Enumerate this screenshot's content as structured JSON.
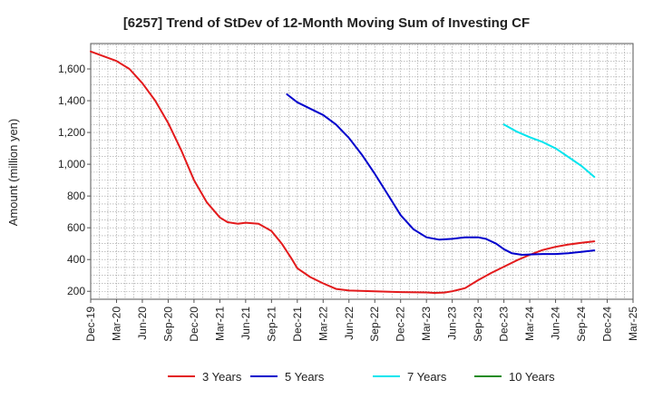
{
  "chart_data": {
    "type": "line",
    "title": "[6257]  Trend of StDev of 12-Month Moving Sum of Investing CF",
    "ylabel": "Amount (million yen)",
    "xlabel": "",
    "x_categories": [
      "Dec-19",
      "Mar-20",
      "Jun-20",
      "Sep-20",
      "Dec-20",
      "Mar-21",
      "Jun-21",
      "Sep-21",
      "Dec-21",
      "Mar-22",
      "Jun-22",
      "Sep-22",
      "Dec-22",
      "Mar-23",
      "Jun-23",
      "Sep-23",
      "Dec-23",
      "Mar-24",
      "Jun-24",
      "Sep-24",
      "Dec-24",
      "Mar-25"
    ],
    "yticks": [
      200,
      400,
      600,
      800,
      1000,
      1200,
      1400,
      1600
    ],
    "ytick_labels": [
      "200",
      "400",
      "600",
      "800",
      "1,000",
      "1,200",
      "1,400",
      "1,600"
    ],
    "ylim": [
      150,
      1760
    ],
    "grid": true,
    "legend_position": "bottom",
    "series": [
      {
        "name": "3 Years",
        "color": "#e31a1c",
        "values": [
          [
            0,
            1710
          ],
          [
            1,
            1650
          ],
          [
            1.5,
            1600
          ],
          [
            2,
            1510
          ],
          [
            2.5,
            1400
          ],
          [
            3,
            1260
          ],
          [
            3.5,
            1090
          ],
          [
            4,
            900
          ],
          [
            4.5,
            760
          ],
          [
            5,
            665
          ],
          [
            5.3,
            635
          ],
          [
            5.7,
            625
          ],
          [
            6,
            632
          ],
          [
            6.5,
            625
          ],
          [
            7,
            580
          ],
          [
            7.4,
            500
          ],
          [
            7.8,
            400
          ],
          [
            8,
            345
          ],
          [
            8.5,
            290
          ],
          [
            9,
            250
          ],
          [
            9.5,
            215
          ],
          [
            10,
            205
          ],
          [
            11,
            200
          ],
          [
            12,
            195
          ],
          [
            13,
            193
          ],
          [
            13.3,
            190
          ],
          [
            13.7,
            192
          ],
          [
            14,
            200
          ],
          [
            14.5,
            220
          ],
          [
            15,
            270
          ],
          [
            15.5,
            315
          ],
          [
            16,
            355
          ],
          [
            16.5,
            395
          ],
          [
            17,
            430
          ],
          [
            17.5,
            460
          ],
          [
            18,
            480
          ],
          [
            18.5,
            495
          ],
          [
            19,
            505
          ],
          [
            19.5,
            515
          ]
        ]
      },
      {
        "name": "5 Years",
        "color": "#0000cc",
        "values": [
          [
            7.6,
            1440
          ],
          [
            8,
            1390
          ],
          [
            8.5,
            1350
          ],
          [
            9,
            1310
          ],
          [
            9.5,
            1250
          ],
          [
            10,
            1165
          ],
          [
            10.5,
            1060
          ],
          [
            11,
            940
          ],
          [
            11.5,
            810
          ],
          [
            12,
            680
          ],
          [
            12.5,
            590
          ],
          [
            13,
            540
          ],
          [
            13.5,
            525
          ],
          [
            14,
            530
          ],
          [
            14.5,
            540
          ],
          [
            15,
            540
          ],
          [
            15.3,
            530
          ],
          [
            15.7,
            500
          ],
          [
            16,
            465
          ],
          [
            16.3,
            440
          ],
          [
            16.7,
            430
          ],
          [
            17,
            432
          ],
          [
            17.5,
            435
          ],
          [
            18,
            435
          ],
          [
            18.5,
            440
          ],
          [
            19,
            448
          ],
          [
            19.5,
            458
          ]
        ]
      },
      {
        "name": "7 Years",
        "color": "#00e5ee",
        "values": [
          [
            16,
            1250
          ],
          [
            16.5,
            1205
          ],
          [
            17,
            1170
          ],
          [
            17.5,
            1140
          ],
          [
            18,
            1100
          ],
          [
            18.5,
            1045
          ],
          [
            19,
            990
          ],
          [
            19.5,
            920
          ]
        ]
      },
      {
        "name": "10 Years",
        "color": "#1f8b1f",
        "values": []
      }
    ]
  }
}
